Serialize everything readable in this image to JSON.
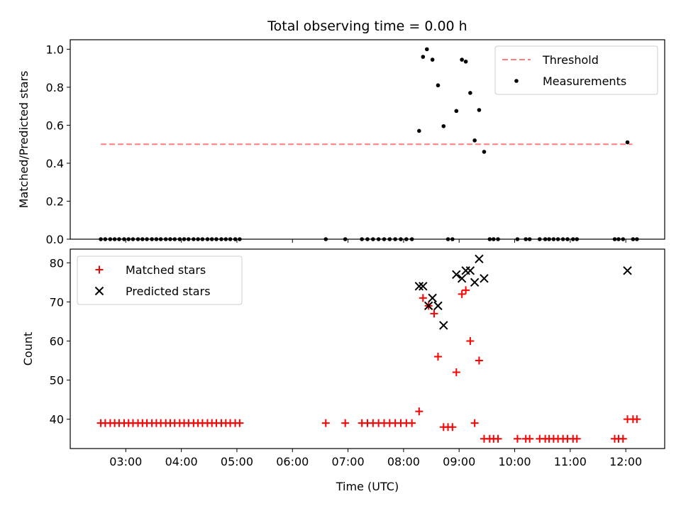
{
  "title": "Total observing time = 0.00 h",
  "chart_data": [
    {
      "type": "scatter",
      "panel": "top",
      "ylabel": "Matched/Predicted stars",
      "ylim": [
        0,
        1.05
      ],
      "yticks": [
        "0.0",
        "0.2",
        "0.4",
        "0.6",
        "0.8",
        "1.0"
      ],
      "legend_placement": "top-right",
      "threshold": {
        "name": "Threshold",
        "value": 0.5,
        "x_start": 2.55,
        "x_end": 12.12,
        "color": "#ff7f7f"
      },
      "series": [
        {
          "name": "Measurements",
          "color": "#000000",
          "x": [
            2.55,
            2.63,
            2.72,
            2.8,
            2.88,
            2.97,
            3.05,
            3.13,
            3.22,
            3.3,
            3.38,
            3.47,
            3.55,
            3.63,
            3.72,
            3.8,
            3.88,
            3.97,
            4.05,
            4.13,
            4.22,
            4.3,
            4.38,
            4.47,
            4.55,
            4.63,
            4.72,
            4.8,
            4.88,
            4.97,
            5.05,
            6.6,
            6.95,
            7.25,
            7.35,
            7.45,
            7.55,
            7.65,
            7.75,
            7.85,
            7.95,
            8.05,
            8.15,
            8.28,
            8.35,
            8.42,
            8.52,
            8.62,
            8.72,
            8.8,
            8.88,
            8.95,
            9.05,
            9.12,
            9.2,
            9.28,
            9.36,
            9.45,
            9.55,
            9.62,
            9.7,
            10.05,
            10.2,
            10.27,
            10.45,
            10.55,
            10.62,
            10.7,
            10.78,
            10.87,
            10.95,
            11.05,
            11.12,
            11.8,
            11.87,
            11.95,
            12.03,
            12.13,
            12.2
          ],
          "y": [
            0,
            0,
            0,
            0,
            0,
            0,
            0,
            0,
            0,
            0,
            0,
            0,
            0,
            0,
            0,
            0,
            0,
            0,
            0,
            0,
            0,
            0,
            0,
            0,
            0,
            0,
            0,
            0,
            0,
            0,
            0,
            0,
            0,
            0,
            0,
            0,
            0,
            0,
            0,
            0,
            0,
            0,
            0,
            0.57,
            0.96,
            1.0,
            0.945,
            0.81,
            0.595,
            0,
            0,
            0.675,
            0.945,
            0.935,
            0.77,
            0.52,
            0.68,
            0.46,
            0,
            0,
            0,
            0,
            0,
            0,
            0,
            0,
            0,
            0,
            0,
            0,
            0,
            0,
            0,
            0,
            0,
            0,
            0.51,
            0,
            0
          ]
        }
      ]
    },
    {
      "type": "scatter",
      "panel": "bottom",
      "xlabel": "Time (UTC)",
      "ylabel": "Count",
      "xlim": [
        2.0,
        12.7
      ],
      "ylim": [
        32.5,
        83.5
      ],
      "xticks": [
        {
          "value": 3,
          "label": "03:00"
        },
        {
          "value": 4,
          "label": "04:00"
        },
        {
          "value": 5,
          "label": "05:00"
        },
        {
          "value": 6,
          "label": "06:00"
        },
        {
          "value": 7,
          "label": "07:00"
        },
        {
          "value": 8,
          "label": "08:00"
        },
        {
          "value": 9,
          "label": "09:00"
        },
        {
          "value": 10,
          "label": "10:00"
        },
        {
          "value": 11,
          "label": "11:00"
        },
        {
          "value": 12,
          "label": "12:00"
        }
      ],
      "yticks": [
        40,
        50,
        60,
        70,
        80
      ],
      "legend_placement": "top-left",
      "series": [
        {
          "name": "Matched stars",
          "marker": "+",
          "color": "#ff0000",
          "x": [
            2.55,
            2.63,
            2.72,
            2.8,
            2.88,
            2.97,
            3.05,
            3.13,
            3.22,
            3.3,
            3.38,
            3.47,
            3.55,
            3.63,
            3.72,
            3.8,
            3.88,
            3.97,
            4.05,
            4.13,
            4.22,
            4.3,
            4.38,
            4.47,
            4.55,
            4.63,
            4.72,
            4.8,
            4.88,
            4.97,
            5.05,
            6.6,
            6.95,
            7.25,
            7.35,
            7.45,
            7.55,
            7.65,
            7.75,
            7.85,
            7.95,
            8.05,
            8.15,
            8.28,
            8.35,
            8.45,
            8.55,
            8.62,
            8.72,
            8.8,
            8.88,
            8.95,
            9.05,
            9.12,
            9.2,
            9.28,
            9.36,
            9.45,
            9.55,
            9.62,
            9.7,
            10.05,
            10.2,
            10.27,
            10.45,
            10.55,
            10.62,
            10.7,
            10.78,
            10.87,
            10.95,
            11.05,
            11.12,
            11.8,
            11.87,
            11.95,
            12.03,
            12.13,
            12.2
          ],
          "y": [
            39,
            39,
            39,
            39,
            39,
            39,
            39,
            39,
            39,
            39,
            39,
            39,
            39,
            39,
            39,
            39,
            39,
            39,
            39,
            39,
            39,
            39,
            39,
            39,
            39,
            39,
            39,
            39,
            39,
            39,
            39,
            39,
            39,
            39,
            39,
            39,
            39,
            39,
            39,
            39,
            39,
            39,
            39,
            42,
            71,
            69,
            67,
            56,
            38,
            38,
            38,
            52,
            72,
            73,
            60,
            39,
            55,
            35,
            35,
            35,
            35,
            35,
            35,
            35,
            35,
            35,
            35,
            35,
            35,
            35,
            35,
            35,
            35,
            35,
            35,
            35,
            40,
            40,
            40
          ]
        },
        {
          "name": "Predicted stars",
          "marker": "x",
          "color": "#000000",
          "x": [
            8.28,
            8.35,
            8.45,
            8.52,
            8.62,
            8.72,
            8.95,
            9.05,
            9.12,
            9.2,
            9.28,
            9.36,
            9.45,
            12.03
          ],
          "y": [
            74,
            74,
            69,
            71,
            69,
            64,
            77,
            76,
            78,
            78,
            75,
            81,
            76,
            78
          ]
        }
      ]
    }
  ]
}
